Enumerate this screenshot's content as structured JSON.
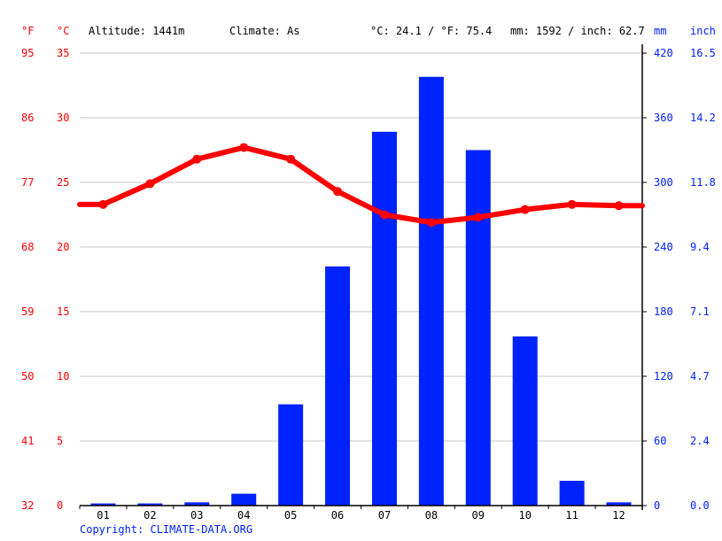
{
  "header": {
    "unit_f": "°F",
    "unit_c": "°C",
    "altitude": "Altitude: 1441m",
    "climate": "Climate: As",
    "temp_summary": "°C: 24.1 / °F: 75.4",
    "precip_summary": "mm: 1592 / inch: 62.7",
    "unit_mm": "mm",
    "unit_inch": "inch"
  },
  "axes": {
    "fahrenheit": [
      "95",
      "86",
      "77",
      "68",
      "59",
      "50",
      "41",
      "32"
    ],
    "celsius": [
      "35",
      "30",
      "25",
      "20",
      "15",
      "10",
      "5",
      "0"
    ],
    "mm": [
      "420",
      "360",
      "300",
      "240",
      "180",
      "120",
      "60",
      "0"
    ],
    "inch": [
      "16.5",
      "14.2",
      "11.8",
      "9.4",
      "7.1",
      "4.7",
      "2.4",
      "0.0"
    ],
    "months": [
      "01",
      "02",
      "03",
      "04",
      "05",
      "06",
      "07",
      "08",
      "09",
      "10",
      "11",
      "12"
    ]
  },
  "footer": {
    "copyright": "Copyright: CLIMATE-DATA.ORG"
  },
  "colors": {
    "temperature": "#ff0000",
    "precipitation": "#0022ff",
    "grid": "#c8c8c8"
  },
  "chart_data": {
    "type": "bar",
    "title": "Climate chart",
    "categories": [
      "01",
      "02",
      "03",
      "04",
      "05",
      "06",
      "07",
      "08",
      "09",
      "10",
      "11",
      "12"
    ],
    "series": [
      {
        "name": "Precipitation (mm)",
        "type": "bar",
        "axis": "right",
        "values": [
          2,
          2,
          3,
          11,
          94,
          222,
          347,
          398,
          330,
          157,
          23,
          3
        ]
      },
      {
        "name": "Temperature (°C)",
        "type": "line",
        "axis": "left",
        "values": [
          23.3,
          24.9,
          26.8,
          27.7,
          26.8,
          24.3,
          22.5,
          21.9,
          22.3,
          22.9,
          23.3,
          23.2
        ]
      }
    ],
    "xlabel": "",
    "ylabel_left": "°C / °F",
    "ylabel_right": "mm / inch",
    "ylim_left_c": [
      0,
      35
    ],
    "ylim_left_f": [
      32,
      95
    ],
    "ylim_right_mm": [
      0,
      420
    ],
    "ylim_right_inch": [
      0,
      16.5
    ],
    "grid": true,
    "summary": {
      "avg_temp_c": 24.1,
      "avg_temp_f": 75.4,
      "total_mm": 1592,
      "total_inch": 62.7,
      "altitude_m": 1441,
      "climate": "As"
    }
  }
}
